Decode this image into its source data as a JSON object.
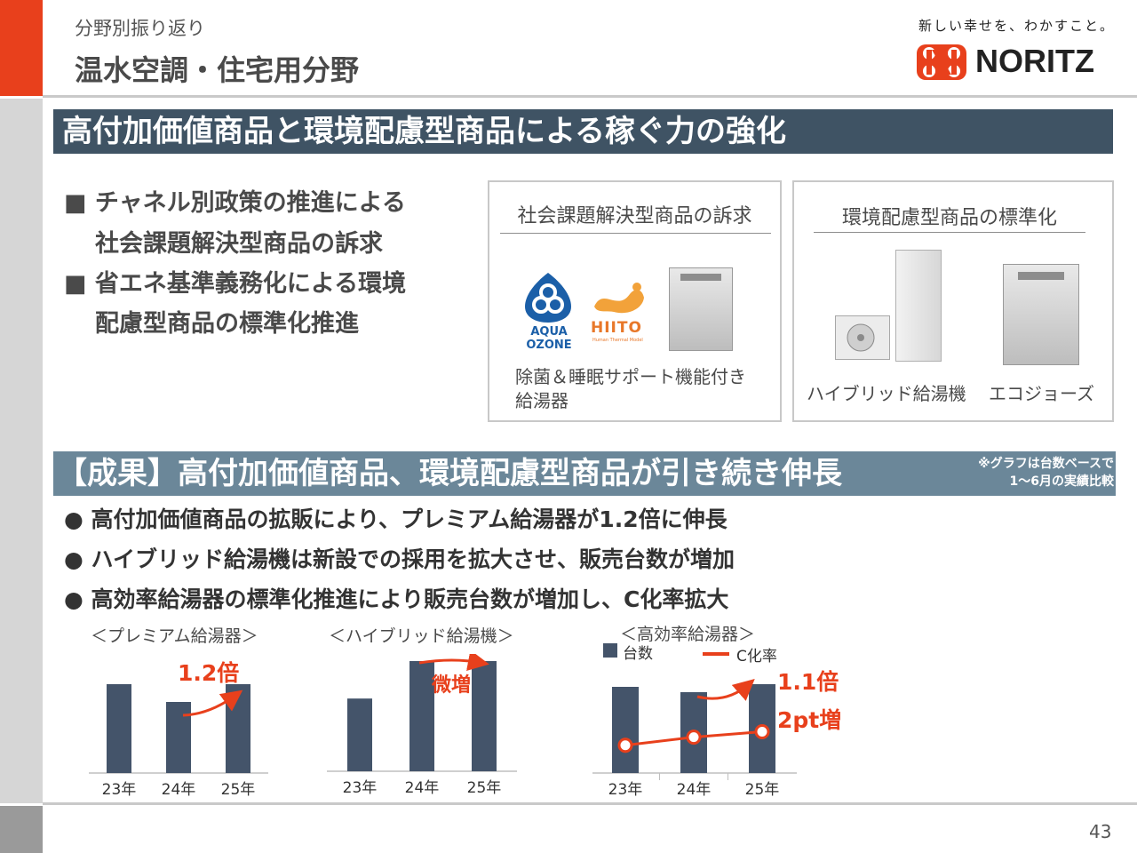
{
  "header": {
    "section_label": "分野別振り返り",
    "page_title": "温水空調・住宅用分野",
    "tagline": "新しい幸せを、わかすこと。",
    "brand": "NORITZ"
  },
  "banner": {
    "title": "高付加価値商品と環境配慮型商品による稼ぐ力の強化"
  },
  "strategy": {
    "bullets": [
      {
        "mark": "■",
        "line1": "チャネル別政策の推進による",
        "line2": "社会課題解決型商品の訴求"
      },
      {
        "mark": "■",
        "line1": "省エネ基準義務化による環境",
        "line2": "配慮型商品の標準化推進"
      }
    ]
  },
  "panel_left": {
    "title": "社会課題解決型商品の訴求",
    "logo1_line1": "AQUA",
    "logo1_line2": "OZONE",
    "logo2": "HIITO",
    "logo2_sub": "Human Thermal Model",
    "caption_line1": "除菌＆睡眠サポート機能付き",
    "caption_line2": "給湯器"
  },
  "panel_right": {
    "title": "環境配慮型商品の標準化",
    "caption_hybrid": "ハイブリッド給湯機",
    "caption_eco": "エコジョーズ"
  },
  "results": {
    "title": "【成果】高付加価値商品、環境配慮型商品が引き続き伸長",
    "note_line1": "※グラフは台数ベースで",
    "note_line2": "1～6月の実績比較",
    "bullets": [
      {
        "mark": "●",
        "text": "高付加価値商品の拡販により、プレミアム給湯器が1.2倍に伸長"
      },
      {
        "mark": "●",
        "text": "ハイブリッド給湯機は新設での採用を拡大させ、販売台数が増加"
      },
      {
        "mark": "●",
        "text": "高効率給湯器の標準化推進により販売台数が増加し、C化率拡大"
      }
    ]
  },
  "chart_data": [
    {
      "type": "bar",
      "title": "＜プレミアム給湯器＞",
      "categories": [
        "23年",
        "24年",
        "25年"
      ],
      "values": [
        1.0,
        0.8,
        1.0
      ],
      "annotation": "1.2倍",
      "bar_color": "#44546a",
      "annotation_color": "#e8401c"
    },
    {
      "type": "bar",
      "title": "＜ハイブリッド給湯機＞",
      "categories": [
        "23年",
        "24年",
        "25年"
      ],
      "values": [
        0.66,
        1.0,
        1.0
      ],
      "annotation": "微増",
      "bar_color": "#44546a",
      "annotation_color": "#e8401c"
    },
    {
      "type": "bar",
      "title": "＜高効率給湯器＞",
      "categories": [
        "23年",
        "24年",
        "25年"
      ],
      "series": [
        {
          "name": "台数",
          "type": "bar",
          "values": [
            0.97,
            0.91,
            1.0
          ]
        },
        {
          "name": "C化率",
          "type": "line",
          "values": [
            0.35,
            0.5,
            0.6
          ]
        }
      ],
      "annotation": "1.1倍",
      "annotation2": "2pt増",
      "bar_color": "#44546a",
      "line_color": "#e8401c"
    }
  ],
  "footer": {
    "page_number": "43"
  }
}
